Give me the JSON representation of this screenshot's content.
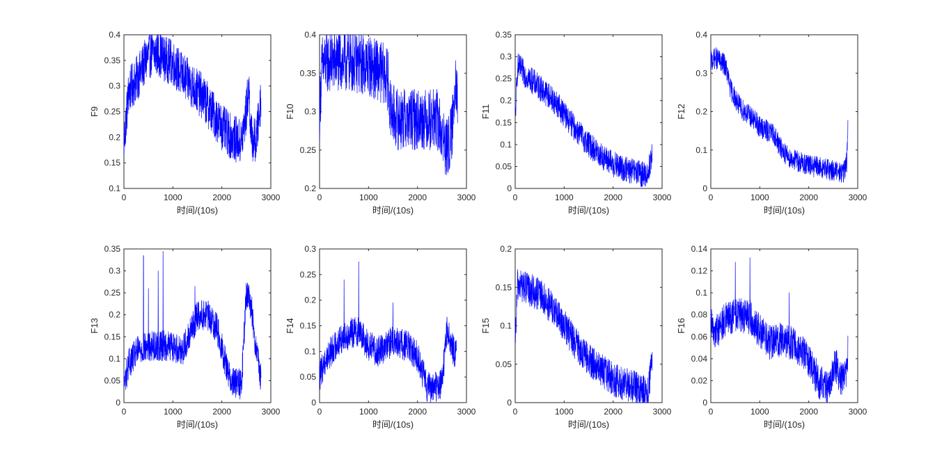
{
  "chart_data": [
    {
      "type": "line",
      "ylabel": "F9",
      "xlabel": "时间/(10s)",
      "xlim": [
        0,
        3000
      ],
      "xticks": [
        0,
        1000,
        2000,
        3000
      ],
      "ylim": [
        0.1,
        0.4
      ],
      "yticks": [
        0.1,
        0.15,
        0.2,
        0.25,
        0.3,
        0.35,
        0.4
      ],
      "ytick_labels": [
        "0.1",
        "0.15",
        "0.2",
        "0.25",
        "0.3",
        "0.35",
        "0.4"
      ],
      "x": [
        0,
        100,
        300,
        400,
        500,
        700,
        800,
        1000,
        1200,
        1400,
        1600,
        1800,
        2000,
        2200,
        2400,
        2500,
        2550,
        2600,
        2700,
        2800
      ],
      "y": [
        0.19,
        0.29,
        0.32,
        0.34,
        0.36,
        0.365,
        0.355,
        0.345,
        0.32,
        0.3,
        0.28,
        0.25,
        0.22,
        0.2,
        0.19,
        0.25,
        0.3,
        0.2,
        0.19,
        0.28
      ],
      "noise": 0.045
    },
    {
      "type": "line",
      "ylabel": "F10",
      "xlabel": "时间/(10s)",
      "xlim": [
        0,
        3000
      ],
      "xticks": [
        0,
        1000,
        2000,
        3000
      ],
      "ylim": [
        0.2,
        0.4
      ],
      "yticks": [
        0.2,
        0.25,
        0.3,
        0.35,
        0.4
      ],
      "ytick_labels": [
        "0.2",
        "0.25",
        "0.3",
        "0.35",
        "0.4"
      ],
      "x": [
        0,
        50,
        200,
        600,
        1000,
        1300,
        1400,
        1450,
        1600,
        2000,
        2400,
        2600,
        2700,
        2780,
        2820
      ],
      "y": [
        0.3,
        0.36,
        0.365,
        0.365,
        0.36,
        0.35,
        0.34,
        0.3,
        0.29,
        0.29,
        0.29,
        0.25,
        0.27,
        0.35,
        0.31
      ],
      "noise": 0.04
    },
    {
      "type": "line",
      "ylabel": "F11",
      "xlabel": "时间/(10s)",
      "xlim": [
        0,
        3000
      ],
      "xticks": [
        0,
        1000,
        2000,
        3000
      ],
      "ylim": [
        0,
        0.35
      ],
      "yticks": [
        0,
        0.05,
        0.1,
        0.15,
        0.2,
        0.25,
        0.3,
        0.35
      ],
      "ytick_labels": [
        "0",
        "0.05",
        "0.1",
        "0.15",
        "0.2",
        "0.25",
        "0.3",
        "0.35"
      ],
      "x": [
        0,
        50,
        200,
        500,
        800,
        1000,
        1200,
        1500,
        1800,
        2000,
        2200,
        2500,
        2700,
        2800
      ],
      "y": [
        0.16,
        0.28,
        0.26,
        0.23,
        0.2,
        0.17,
        0.14,
        0.1,
        0.07,
        0.055,
        0.045,
        0.035,
        0.03,
        0.08
      ],
      "noise": 0.03
    },
    {
      "type": "line",
      "ylabel": "F12",
      "xlabel": "时间/(10s)",
      "xlim": [
        0,
        3000
      ],
      "xticks": [
        0,
        1000,
        2000,
        3000
      ],
      "ylim": [
        0,
        0.4
      ],
      "yticks": [
        0,
        0.1,
        0.2,
        0.3,
        0.4
      ],
      "ytick_labels": [
        "0",
        "0.1",
        "0.2",
        "0.3",
        "0.4"
      ],
      "x": [
        0,
        100,
        300,
        400,
        600,
        800,
        1000,
        1300,
        1400,
        1600,
        1800,
        2000,
        2400,
        2700,
        2780,
        2800
      ],
      "y": [
        0.33,
        0.34,
        0.32,
        0.26,
        0.21,
        0.19,
        0.16,
        0.14,
        0.11,
        0.08,
        0.07,
        0.06,
        0.05,
        0.04,
        0.07,
        0.18
      ],
      "noise": 0.028
    },
    {
      "type": "line",
      "ylabel": "F13",
      "xlabel": "时间/(10s)",
      "xlim": [
        0,
        3000
      ],
      "xticks": [
        0,
        1000,
        2000,
        3000
      ],
      "ylim": [
        0,
        0.35
      ],
      "yticks": [
        0,
        0.05,
        0.1,
        0.15,
        0.2,
        0.25,
        0.3,
        0.35
      ],
      "ytick_labels": [
        "0",
        "0.05",
        "0.1",
        "0.15",
        "0.2",
        "0.25",
        "0.3",
        "0.35"
      ],
      "x": [
        0,
        100,
        300,
        600,
        900,
        1200,
        1400,
        1500,
        1700,
        1900,
        2100,
        2200,
        2400,
        2500,
        2600,
        2700,
        2800
      ],
      "y": [
        0.04,
        0.09,
        0.12,
        0.13,
        0.13,
        0.12,
        0.17,
        0.2,
        0.2,
        0.17,
        0.08,
        0.05,
        0.04,
        0.25,
        0.22,
        0.12,
        0.05
      ],
      "noise": 0.035,
      "spikes": [
        {
          "x": 400,
          "y": 0.335
        },
        {
          "x": 500,
          "y": 0.26
        },
        {
          "x": 700,
          "y": 0.3
        },
        {
          "x": 800,
          "y": 0.345
        },
        {
          "x": 1450,
          "y": 0.265
        }
      ]
    },
    {
      "type": "line",
      "ylabel": "F14",
      "xlabel": "时间/(10s)",
      "xlim": [
        0,
        3000
      ],
      "xticks": [
        0,
        1000,
        2000,
        3000
      ],
      "ylim": [
        0,
        0.3
      ],
      "yticks": [
        0,
        0.05,
        0.1,
        0.15,
        0.2,
        0.25,
        0.3
      ],
      "ytick_labels": [
        "0",
        "0.05",
        "0.1",
        "0.15",
        "0.2",
        "0.25",
        "0.3"
      ],
      "x": [
        0,
        100,
        300,
        500,
        800,
        1000,
        1200,
        1500,
        1800,
        2000,
        2100,
        2200,
        2400,
        2500,
        2600,
        2700,
        2800
      ],
      "y": [
        0.05,
        0.08,
        0.11,
        0.13,
        0.14,
        0.11,
        0.1,
        0.12,
        0.11,
        0.09,
        0.06,
        0.03,
        0.03,
        0.04,
        0.14,
        0.11,
        0.09
      ],
      "noise": 0.03,
      "spikes": [
        {
          "x": 500,
          "y": 0.24
        },
        {
          "x": 800,
          "y": 0.275
        },
        {
          "x": 1500,
          "y": 0.195
        }
      ]
    },
    {
      "type": "line",
      "ylabel": "F15",
      "xlabel": "时间/(10s)",
      "xlim": [
        0,
        3000
      ],
      "xticks": [
        0,
        1000,
        2000,
        3000
      ],
      "ylim": [
        0,
        0.2
      ],
      "yticks": [
        0,
        0.05,
        0.1,
        0.15,
        0.2
      ],
      "ytick_labels": [
        "0",
        "0.05",
        "0.1",
        "0.15",
        "0.2"
      ],
      "x": [
        0,
        50,
        200,
        500,
        800,
        1000,
        1200,
        1500,
        1800,
        2000,
        2200,
        2500,
        2700,
        2800
      ],
      "y": [
        0.08,
        0.155,
        0.15,
        0.14,
        0.12,
        0.1,
        0.08,
        0.055,
        0.04,
        0.03,
        0.025,
        0.018,
        0.015,
        0.05
      ],
      "noise": 0.022
    },
    {
      "type": "line",
      "ylabel": "F16",
      "xlabel": "时间/(10s)",
      "xlim": [
        0,
        3000
      ],
      "xticks": [
        0,
        1000,
        2000,
        3000
      ],
      "ylim": [
        0,
        0.14
      ],
      "yticks": [
        0,
        0.02,
        0.04,
        0.06,
        0.08,
        0.1,
        0.12,
        0.14
      ],
      "ytick_labels": [
        "0",
        "0.02",
        "0.04",
        "0.06",
        "0.08",
        "0.1",
        "0.12",
        "0.14"
      ],
      "x": [
        0,
        100,
        300,
        500,
        800,
        1000,
        1200,
        1500,
        1800,
        2000,
        2200,
        2400,
        2550,
        2650,
        2750,
        2800
      ],
      "y": [
        0.07,
        0.065,
        0.075,
        0.08,
        0.078,
        0.065,
        0.055,
        0.058,
        0.05,
        0.04,
        0.02,
        0.012,
        0.035,
        0.02,
        0.025,
        0.045
      ],
      "noise": 0.016,
      "spikes": [
        {
          "x": 500,
          "y": 0.128
        },
        {
          "x": 800,
          "y": 0.132
        },
        {
          "x": 1600,
          "y": 0.1
        }
      ]
    }
  ],
  "style": {
    "line_color": "#0000ff",
    "axis_color": "#262626",
    "background": "#ffffff"
  }
}
